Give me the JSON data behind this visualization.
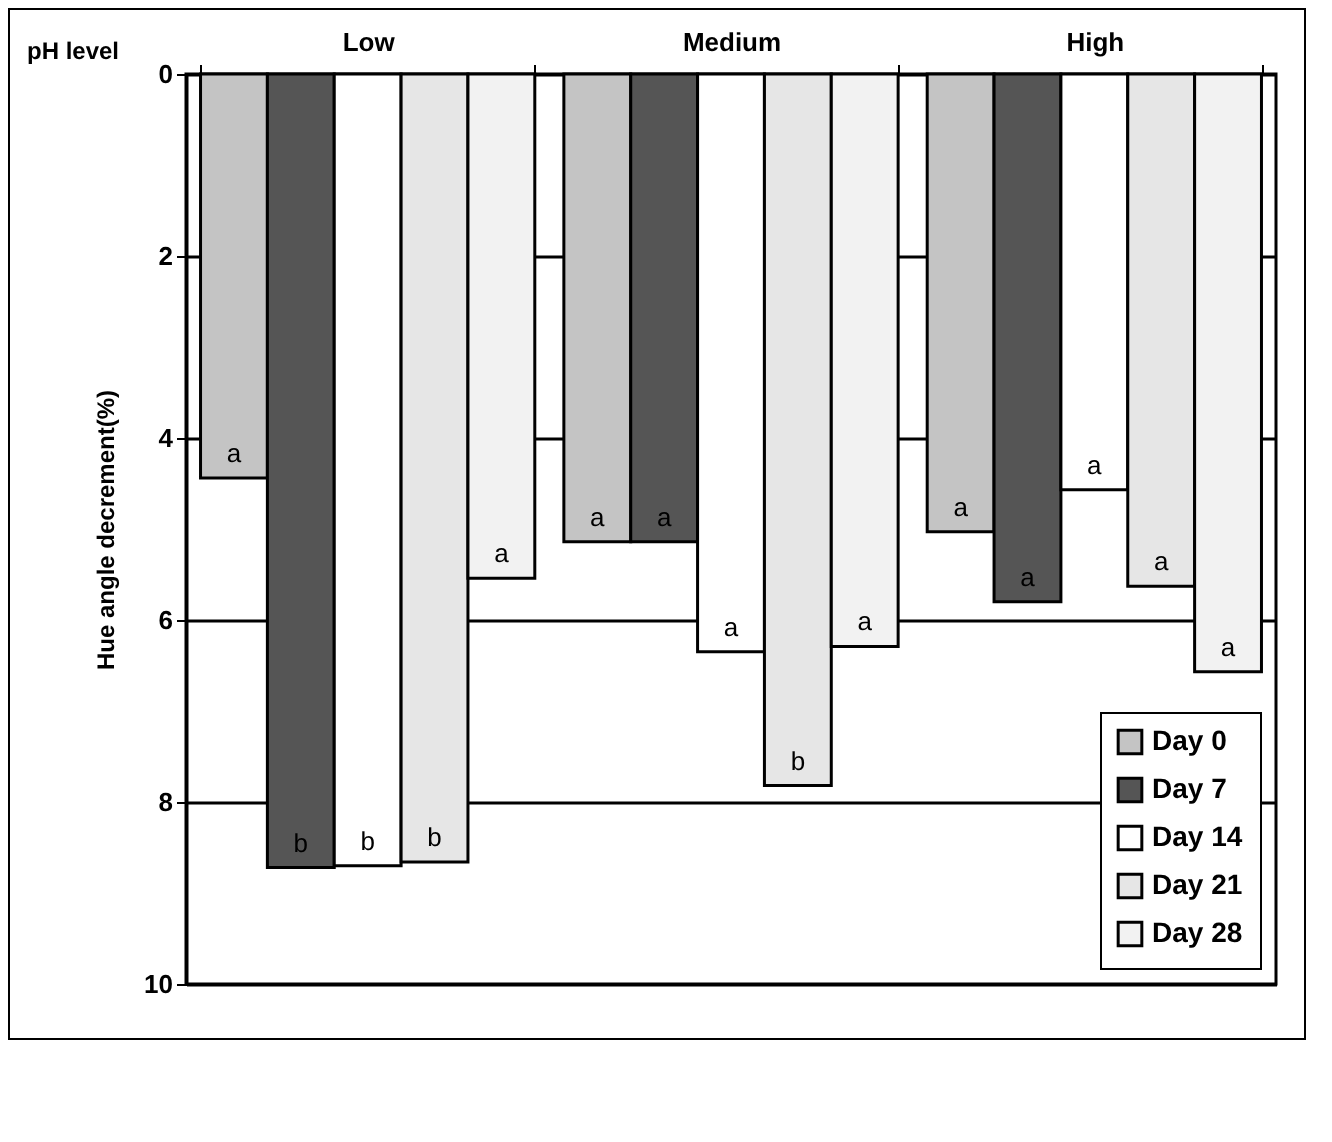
{
  "chart_data": {
    "type": "bar",
    "xlabel": "pH level",
    "ylabel": "Hue angle decrement(%)",
    "categories": [
      "Low",
      "Medium",
      "High"
    ],
    "series": [
      {
        "name": "Day 0",
        "color": "#c4c4c4",
        "values": [
          4.44,
          5.14,
          5.03
        ],
        "value_labels": [
          "a",
          "a",
          "a"
        ]
      },
      {
        "name": "Day 7",
        "color": "#555555",
        "values": [
          8.72,
          5.14,
          5.8
        ],
        "value_labels": [
          "b",
          "a",
          "a"
        ]
      },
      {
        "name": "Day 14",
        "color": "#ffffff",
        "values": [
          8.7,
          6.35,
          4.57
        ],
        "value_labels": [
          "b",
          "a",
          "a"
        ]
      },
      {
        "name": "Day 21",
        "color": "#e6e6e6",
        "values": [
          8.66,
          7.82,
          5.63
        ],
        "value_labels": [
          "b",
          "b",
          "a"
        ]
      },
      {
        "name": "Day 28",
        "color": "#f2f2f2",
        "values": [
          5.54,
          6.29,
          6.57
        ],
        "value_labels": [
          "a",
          "a",
          "a"
        ]
      }
    ],
    "ylim": [
      10,
      0
    ],
    "yticks": [
      0,
      2,
      4,
      6,
      8,
      10
    ],
    "grid": "y",
    "legend": "bottom right"
  }
}
